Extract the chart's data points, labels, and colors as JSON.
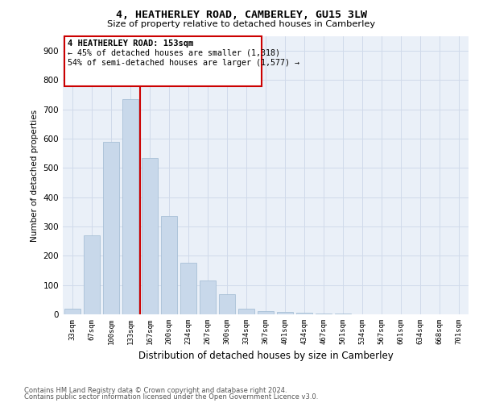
{
  "title": "4, HEATHERLEY ROAD, CAMBERLEY, GU15 3LW",
  "subtitle": "Size of property relative to detached houses in Camberley",
  "xlabel": "Distribution of detached houses by size in Camberley",
  "ylabel": "Number of detached properties",
  "bar_labels": [
    "33sqm",
    "67sqm",
    "100sqm",
    "133sqm",
    "167sqm",
    "200sqm",
    "234sqm",
    "267sqm",
    "300sqm",
    "334sqm",
    "367sqm",
    "401sqm",
    "434sqm",
    "467sqm",
    "501sqm",
    "534sqm",
    "567sqm",
    "601sqm",
    "634sqm",
    "668sqm",
    "701sqm"
  ],
  "bar_values": [
    20,
    270,
    590,
    735,
    535,
    335,
    175,
    115,
    68,
    20,
    10,
    8,
    5,
    2,
    2,
    1,
    1,
    0.5,
    0.5,
    0.2,
    0.2
  ],
  "bar_color": "#c8d8ea",
  "bar_edgecolor": "#a8c0d6",
  "vline_pos": 3.5,
  "vline_color": "#cc0000",
  "annotation_title": "4 HEATHERLEY ROAD: 153sqm",
  "annotation_line1": "← 45% of detached houses are smaller (1,318)",
  "annotation_line2": "54% of semi-detached houses are larger (1,577) →",
  "annotation_box_color": "#cc0000",
  "ylim": [
    0,
    950
  ],
  "yticks": [
    0,
    100,
    200,
    300,
    400,
    500,
    600,
    700,
    800,
    900
  ],
  "footer_line1": "Contains HM Land Registry data © Crown copyright and database right 2024.",
  "footer_line2": "Contains public sector information licensed under the Open Government Licence v3.0.",
  "background_color": "#ffffff",
  "axes_facecolor": "#eaf0f8",
  "grid_color": "#d0daea"
}
